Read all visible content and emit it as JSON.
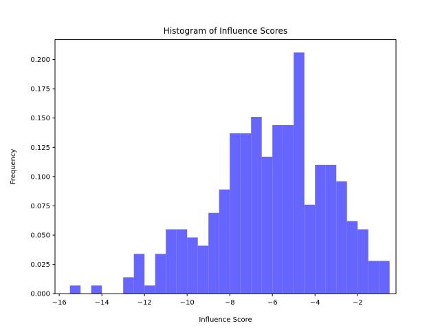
{
  "chart_data": {
    "type": "bar",
    "title": "Histogram of Influence Scores",
    "xlabel": "Influence Score",
    "ylabel": "Frequency",
    "xlim": [
      -16.2,
      -0.2
    ],
    "ylim": [
      0,
      0.217
    ],
    "bar_color": "#6666ff",
    "bin_edges": [
      -15.5,
      -15.0,
      -14.5,
      -14.0,
      -13.5,
      -13.0,
      -12.5,
      -12.0,
      -11.5,
      -11.0,
      -10.5,
      -10.0,
      -9.5,
      -9.0,
      -8.5,
      -8.0,
      -7.5,
      -7.0,
      -6.5,
      -6.0,
      -5.5,
      -5.0,
      -4.5,
      -4.0,
      -3.5,
      -3.0,
      -2.5,
      -2.0,
      -1.5,
      -1.0,
      -0.5
    ],
    "values": [
      0.007,
      0.0,
      0.007,
      0.0,
      0.0,
      0.014,
      0.034,
      0.007,
      0.034,
      0.055,
      0.055,
      0.048,
      0.041,
      0.069,
      0.089,
      0.137,
      0.137,
      0.151,
      0.117,
      0.144,
      0.144,
      0.206,
      0.076,
      0.11,
      0.11,
      0.096,
      0.062,
      0.055,
      0.028,
      0.028
    ],
    "xticks": [
      -16,
      -14,
      -12,
      -10,
      -8,
      -6,
      -4,
      -2
    ],
    "xtick_labels": [
      "−16",
      "−14",
      "−12",
      "−10",
      "−8",
      "−6",
      "−4",
      "−2"
    ],
    "yticks": [
      0.0,
      0.025,
      0.05,
      0.075,
      0.1,
      0.125,
      0.15,
      0.175,
      0.2
    ],
    "ytick_labels": [
      "0.000",
      "0.025",
      "0.050",
      "0.075",
      "0.100",
      "0.125",
      "0.150",
      "0.175",
      "0.200"
    ],
    "grid": false,
    "legend": "none"
  }
}
